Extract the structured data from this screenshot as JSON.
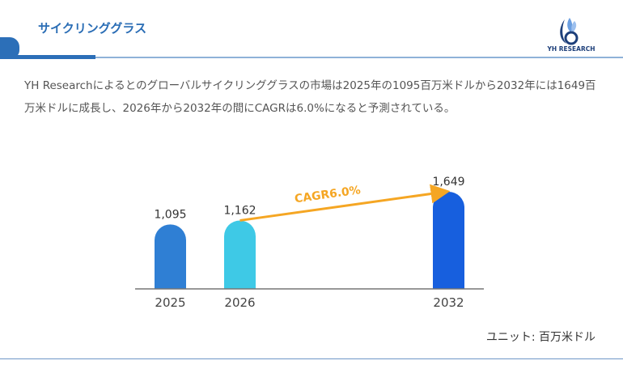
{
  "header": {
    "title": "サイクリンググラス",
    "logo_text": "YH RESEARCH"
  },
  "description": "YH Researchによるとのグローバルサイクリンググラスの市場は2025年の1095百万米ドルから2032年には1649百万米ドルに成長し、2026年から2032年の間にCAGRは6.0%になると予測されている。",
  "unit_label": "ユニット: 百万米ドル",
  "chart_data": {
    "type": "bar",
    "categories": [
      "2025",
      "2026",
      "2032"
    ],
    "values": [
      1095,
      1162,
      1649
    ],
    "data_labels": [
      "1,095",
      "1,162",
      "1,649"
    ],
    "colors": [
      "#2f7fd4",
      "#3ec9e6",
      "#175fde"
    ],
    "annotation": {
      "text": "CAGR6.0%",
      "from": "2026",
      "to": "2032",
      "color": "#f5a623"
    },
    "grid": false
  }
}
